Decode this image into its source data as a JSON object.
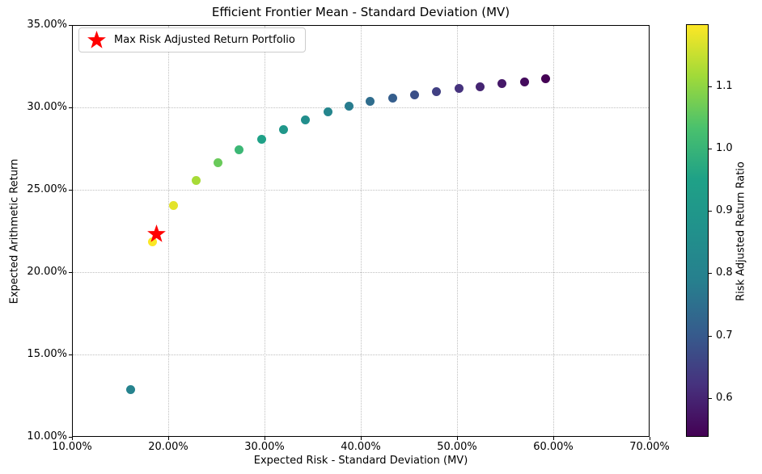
{
  "chart_data": {
    "type": "scatter",
    "title": "Efficient Frontier Mean - Standard Deviation (MV)",
    "xlabel": "Expected Risk - Standard Deviation (MV)",
    "ylabel": "Expected Arithmetic Return",
    "xlim": [
      10,
      70
    ],
    "ylim": [
      10,
      35
    ],
    "x_ticks": [
      10,
      20,
      30,
      40,
      50,
      60,
      70
    ],
    "x_tick_labels": [
      "10.00%",
      "20.00%",
      "30.00%",
      "40.00%",
      "50.00%",
      "60.00%",
      "70.00%"
    ],
    "y_ticks": [
      10,
      15,
      20,
      25,
      30,
      35
    ],
    "y_tick_labels": [
      "10.00%",
      "15.00%",
      "20.00%",
      "25.00%",
      "30.00%",
      "35.00%"
    ],
    "grid": true,
    "grid_style": "dotted",
    "points": [
      {
        "x": 16.0,
        "y": 12.9,
        "ratio": 0.806
      },
      {
        "x": 18.3,
        "y": 21.9,
        "ratio": 1.197
      },
      {
        "x": 20.5,
        "y": 24.1,
        "ratio": 1.176
      },
      {
        "x": 22.8,
        "y": 25.6,
        "ratio": 1.123
      },
      {
        "x": 25.1,
        "y": 26.7,
        "ratio": 1.064
      },
      {
        "x": 27.3,
        "y": 27.5,
        "ratio": 1.007
      },
      {
        "x": 29.6,
        "y": 28.1,
        "ratio": 0.949
      },
      {
        "x": 31.9,
        "y": 28.7,
        "ratio": 0.9
      },
      {
        "x": 34.2,
        "y": 29.3,
        "ratio": 0.857
      },
      {
        "x": 36.5,
        "y": 29.8,
        "ratio": 0.816
      },
      {
        "x": 38.7,
        "y": 30.1,
        "ratio": 0.778
      },
      {
        "x": 40.9,
        "y": 30.4,
        "ratio": 0.743
      },
      {
        "x": 43.2,
        "y": 30.6,
        "ratio": 0.708
      },
      {
        "x": 45.5,
        "y": 30.8,
        "ratio": 0.677
      },
      {
        "x": 47.8,
        "y": 31.0,
        "ratio": 0.648
      },
      {
        "x": 50.1,
        "y": 31.2,
        "ratio": 0.623
      },
      {
        "x": 52.3,
        "y": 31.3,
        "ratio": 0.598
      },
      {
        "x": 54.6,
        "y": 31.5,
        "ratio": 0.577
      },
      {
        "x": 56.9,
        "y": 31.6,
        "ratio": 0.555
      },
      {
        "x": 59.1,
        "y": 31.8,
        "ratio": 0.538
      }
    ],
    "max_portfolio": {
      "x": 18.7,
      "y": 22.4,
      "marker": "star",
      "color": "#ff0000"
    },
    "legend": {
      "position": "upper left",
      "entries": [
        {
          "label": "Max Risk Adjusted Return Portfolio",
          "marker": "star",
          "color": "#ff0000"
        }
      ]
    },
    "colorbar": {
      "label": "Risk Adjusted Return Ratio",
      "colormap": "viridis",
      "vmin": 0.538,
      "vmax": 1.199,
      "ticks": [
        0.6,
        0.7,
        0.8,
        0.9,
        1.0,
        1.1
      ],
      "tick_labels": [
        "0.6",
        "0.7",
        "0.8",
        "0.9",
        "1.0",
        "1.1"
      ]
    }
  },
  "colors": {
    "star": "#ff0000",
    "grid": "#bfbfbf",
    "spine": "#000000",
    "background": "#ffffff"
  }
}
